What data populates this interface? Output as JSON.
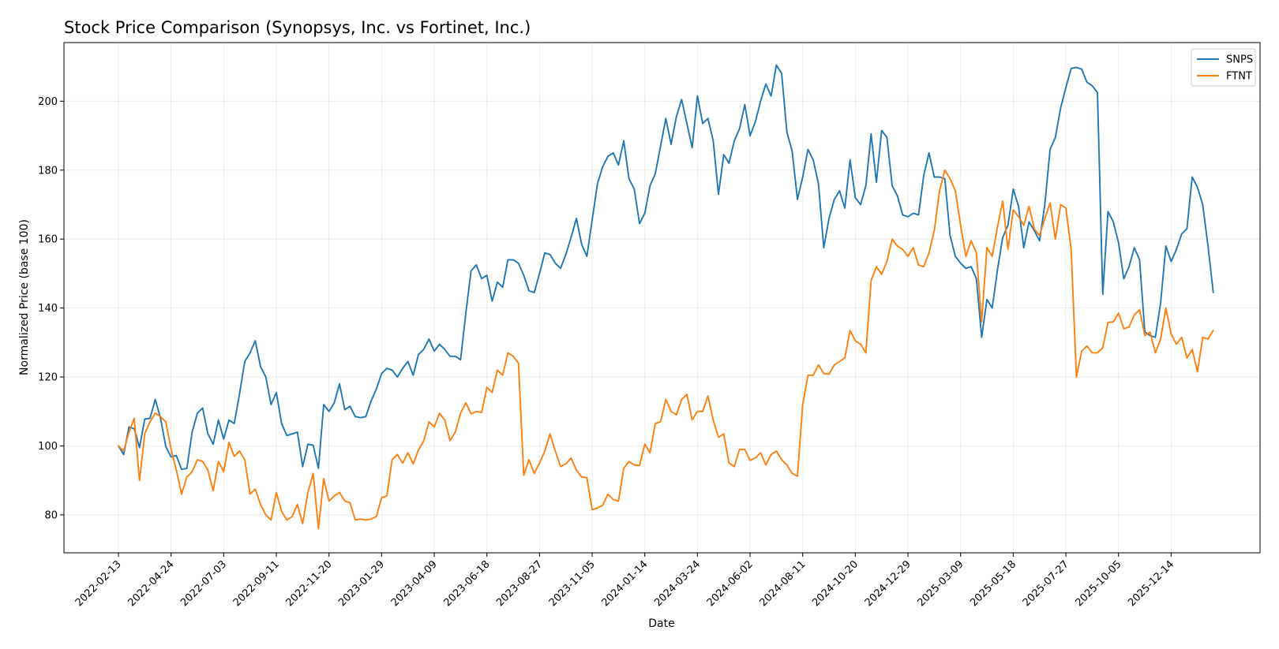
{
  "chart_data": {
    "type": "line",
    "title": "Stock Price Comparison (Synopsys, Inc. vs Fortinet, Inc.)",
    "xlabel": "Date",
    "ylabel": "Normalized Price (base 100)",
    "ylim": [
      69,
      217
    ],
    "y_ticks": [
      80,
      100,
      120,
      140,
      160,
      180,
      200
    ],
    "x_ticks": [
      "2022-02-13",
      "2022-04-24",
      "2022-07-03",
      "2022-09-11",
      "2022-11-20",
      "2023-01-29",
      "2023-04-09",
      "2023-06-18",
      "2023-08-27",
      "2023-11-05",
      "2024-01-14",
      "2024-03-24",
      "2024-06-02",
      "2024-08-11",
      "2024-10-20",
      "2024-12-29",
      "2025-03-09",
      "2025-05-18",
      "2025-07-27",
      "2025-10-05",
      "2025-12-14"
    ],
    "x_start": "2022-02-13",
    "x_step_days": 7,
    "grid": true,
    "legend_position": "top-right",
    "series": [
      {
        "name": "SNPS",
        "color": "#1f77b4",
        "values": [
          100.0,
          97.5,
          105.5,
          105.0,
          99.5,
          107.8,
          108.0,
          113.5,
          108.0,
          99.8,
          96.8,
          97.2,
          93.2,
          93.5,
          104.0,
          109.5,
          111.0,
          103.5,
          100.5,
          107.5,
          102.0,
          107.5,
          106.5,
          115.0,
          124.5,
          127.0,
          130.5,
          123.0,
          120.0,
          112.0,
          115.5,
          106.5,
          103.0,
          103.5,
          104.0,
          94.0,
          100.5,
          100.2,
          93.5,
          112.0,
          110.0,
          112.5,
          118.0,
          110.5,
          111.5,
          108.5,
          108.2,
          108.5,
          113.0,
          116.5,
          121.0,
          122.5,
          122.0,
          120.0,
          122.5,
          124.5,
          120.5,
          126.5,
          128.0,
          131.0,
          127.5,
          129.5,
          128.0,
          126.0,
          126.0,
          125.0,
          138.5,
          150.8,
          152.5,
          148.5,
          149.5,
          142.0,
          147.5,
          146.0,
          154.0,
          154.0,
          153.0,
          149.5,
          145.0,
          144.5,
          150.0,
          156.0,
          155.5,
          153.0,
          151.5,
          155.5,
          160.5,
          166.0,
          158.5,
          155.0,
          165.5,
          176.0,
          181.0,
          184.0,
          185.0,
          181.5,
          188.5,
          177.5,
          174.5,
          164.5,
          167.5,
          175.5,
          179.0,
          187.0,
          195.0,
          187.5,
          195.5,
          200.5,
          193.5,
          186.5,
          201.5,
          193.5,
          195.0,
          188.5,
          173.0,
          184.5,
          182.0,
          188.5,
          192.0,
          199.0,
          190.0,
          194.0,
          200.0,
          205.0,
          201.5,
          210.5,
          208.0,
          191.0,
          185.5,
          171.5,
          178.0,
          186.0,
          183.0,
          176.0,
          157.5,
          166.0,
          171.5,
          174.0,
          169.0,
          183.0,
          172.0,
          170.0,
          175.5,
          190.5,
          176.5,
          191.5,
          189.5,
          175.5,
          172.5,
          167.0,
          166.5,
          167.5,
          167.0,
          178.5,
          185.0,
          178.0,
          178.0,
          177.5,
          161.0,
          155.0,
          153.0,
          151.5,
          152.0,
          148.5,
          131.5,
          142.5,
          140.0,
          151.0,
          160.5,
          164.0,
          174.5,
          169.5,
          157.5,
          165.0,
          162.5,
          159.5,
          170.0,
          186.0,
          189.5,
          198.0,
          204.0,
          209.5,
          209.8,
          209.3,
          205.5,
          204.5,
          202.5,
          144.0,
          168.0,
          165.0,
          159.0,
          148.5,
          152.0,
          157.5,
          154.0,
          133.0,
          132.0,
          131.5,
          141.5,
          158.0,
          153.5,
          157.0,
          161.5,
          163.0,
          178.0,
          175.0,
          170.0,
          158.0,
          144.5
        ]
      },
      {
        "name": "FTNT",
        "color": "#ff7f0e",
        "values": [
          100.0,
          98.5,
          104.0,
          108.0,
          90.0,
          103.5,
          107.0,
          109.5,
          108.5,
          107.0,
          99.0,
          93.0,
          86.0,
          91.0,
          92.5,
          96.0,
          95.5,
          93.0,
          87.0,
          95.5,
          92.5,
          101.0,
          97.0,
          98.5,
          96.0,
          86.0,
          87.5,
          83.0,
          80.0,
          78.5,
          86.5,
          81.0,
          78.5,
          79.5,
          83.0,
          77.5,
          86.5,
          92.0,
          76.0,
          90.5,
          84.0,
          85.5,
          86.5,
          84.0,
          83.5,
          78.5,
          78.8,
          78.5,
          78.8,
          79.5,
          85.0,
          85.5,
          96.0,
          97.5,
          95.0,
          98.0,
          94.8,
          98.8,
          101.5,
          107.0,
          105.5,
          109.5,
          107.5,
          101.5,
          104.0,
          109.5,
          112.5,
          109.3,
          110.0,
          109.7,
          117.0,
          115.5,
          122.0,
          120.5,
          127.0,
          126.0,
          124.0,
          91.5,
          96.0,
          92.0,
          95.0,
          98.5,
          103.5,
          98.5,
          94.0,
          94.8,
          96.5,
          93.0,
          91.0,
          90.8,
          81.5,
          82.0,
          82.8,
          86.0,
          84.5,
          84.0,
          93.5,
          95.5,
          94.5,
          94.3,
          100.5,
          98.0,
          106.5,
          107.0,
          113.5,
          110.0,
          109.0,
          113.5,
          115.0,
          107.5,
          110.0,
          110.0,
          114.5,
          107.5,
          102.5,
          103.5,
          95.0,
          94.0,
          99.0,
          99.0,
          95.8,
          96.5,
          98.0,
          94.5,
          97.5,
          98.5,
          96.0,
          94.5,
          92.0,
          91.2,
          112.0,
          120.5,
          120.5,
          123.5,
          121.0,
          120.8,
          123.5,
          124.5,
          125.5,
          133.5,
          130.5,
          129.5,
          127.0,
          148.0,
          152.0,
          149.8,
          153.5,
          160.0,
          158.0,
          157.0,
          155.0,
          157.5,
          152.5,
          152.0,
          156.0,
          162.5,
          174.0,
          180.0,
          177.5,
          174.0,
          164.0,
          155.0,
          159.5,
          156.0,
          136.0,
          157.5,
          155.0,
          163.5,
          171.0,
          157.0,
          168.5,
          166.5,
          164.0,
          169.5,
          163.0,
          161.0,
          166.0,
          170.5,
          160.0,
          170.0,
          169.0,
          157.0,
          120.0,
          127.5,
          129.0,
          127.0,
          127.0,
          128.5,
          135.8,
          136.0,
          138.5,
          134.0,
          134.5,
          138.0,
          139.5,
          132.0,
          133.0,
          127.0,
          131.0,
          140.0,
          132.5,
          129.5,
          131.5,
          125.5,
          128.0,
          121.5,
          131.5,
          131.0,
          133.5
        ]
      }
    ]
  }
}
